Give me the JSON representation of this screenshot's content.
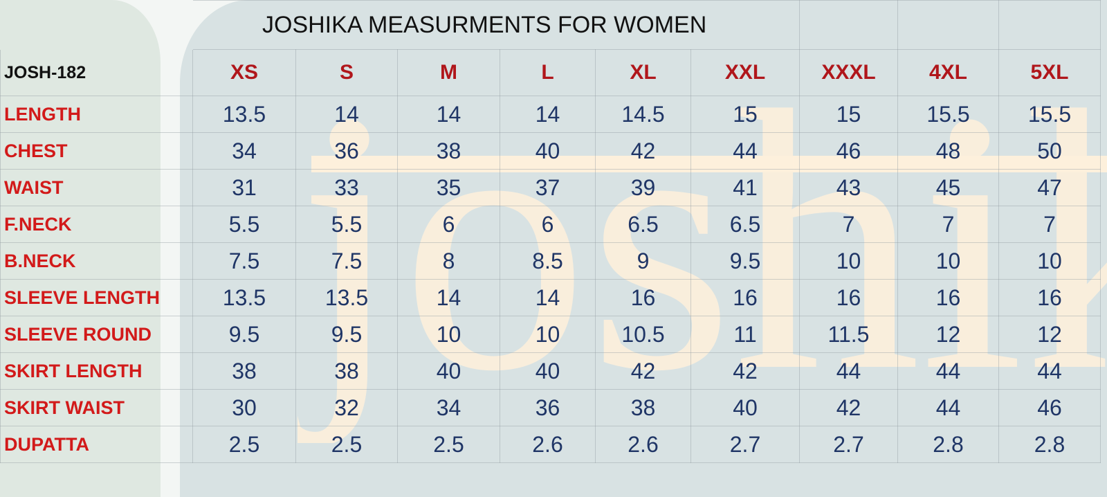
{
  "sheet": {
    "title": "JOSHIKA MEASURMENTS FOR WOMEN",
    "product_code": "JOSH-182",
    "sizes": [
      "XS",
      "S",
      "M",
      "L",
      "XL",
      "XXL",
      "XXXL",
      "4XL",
      "5XL"
    ],
    "rows": [
      {
        "label": "LENGTH",
        "values": [
          "13.5",
          "14",
          "14",
          "14",
          "14.5",
          "15",
          "15",
          "15.5",
          "15.5"
        ]
      },
      {
        "label": "CHEST",
        "values": [
          "34",
          "36",
          "38",
          "40",
          "42",
          "44",
          "46",
          "48",
          "50"
        ]
      },
      {
        "label": "WAIST",
        "values": [
          "31",
          "33",
          "35",
          "37",
          "39",
          "41",
          "43",
          "45",
          "47"
        ]
      },
      {
        "label": "F.NECK",
        "values": [
          "5.5",
          "5.5",
          "6",
          "6",
          "6.5",
          "6.5",
          "7",
          "7",
          "7"
        ]
      },
      {
        "label": "B.NECK",
        "values": [
          "7.5",
          "7.5",
          "8",
          "8.5",
          "9",
          "9.5",
          "10",
          "10",
          "10"
        ]
      },
      {
        "label": "SLEEVE LENGTH",
        "values": [
          "13.5",
          "13.5",
          "14",
          "14",
          "16",
          "16",
          "16",
          "16",
          "16"
        ]
      },
      {
        "label": "SLEEVE ROUND",
        "values": [
          "9.5",
          "9.5",
          "10",
          "10",
          "10.5",
          "11",
          "11.5",
          "12",
          "12"
        ]
      },
      {
        "label": "SKIRT LENGTH",
        "values": [
          "38",
          "38",
          "40",
          "40",
          "42",
          "42",
          "44",
          "44",
          "44"
        ]
      },
      {
        "label": "SKIRT WAIST",
        "values": [
          "30",
          "32",
          "34",
          "36",
          "38",
          "40",
          "42",
          "44",
          "46"
        ]
      },
      {
        "label": "DUPATTA",
        "values": [
          "2.5",
          "2.5",
          "2.5",
          "2.6",
          "2.6",
          "2.7",
          "2.7",
          "2.8",
          "2.8"
        ]
      }
    ]
  },
  "watermark": {
    "text": "joshika",
    "color": "#fdf0dc"
  },
  "colors": {
    "label": "#d21a1a",
    "size_header": "#b0161b",
    "value": "#1f3566"
  }
}
